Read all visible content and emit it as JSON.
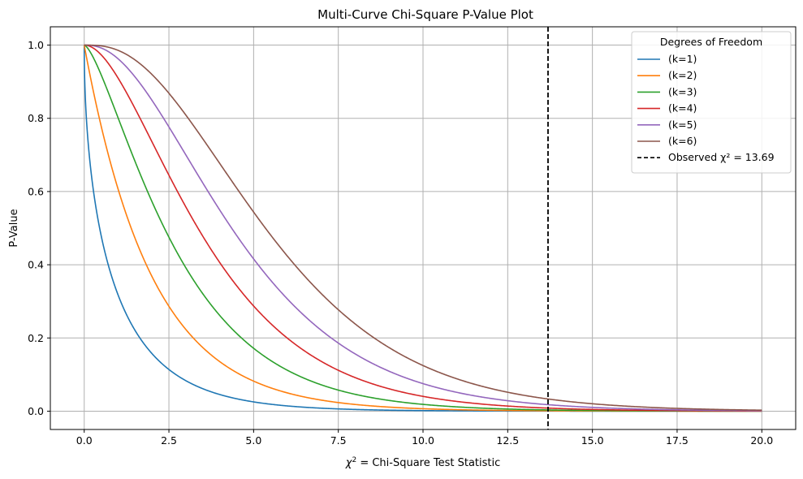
{
  "chart_data": {
    "type": "line",
    "title": "Multi-Curve Chi-Square P-Value Plot",
    "xlabel_math": "χ",
    "xlabel_sup": "2",
    "xlabel_rest": " = Chi-Square Test Statistic",
    "ylabel": "P-Value",
    "xlim": [
      -1.0,
      21.0
    ],
    "ylim": [
      -0.05,
      1.05
    ],
    "x_ticks": [
      0.0,
      2.5,
      5.0,
      7.5,
      10.0,
      12.5,
      15.0,
      17.5,
      20.0
    ],
    "x_tick_labels": [
      "0.0",
      "2.5",
      "5.0",
      "7.5",
      "10.0",
      "12.5",
      "15.0",
      "17.5",
      "20.0"
    ],
    "y_ticks": [
      0.0,
      0.2,
      0.4,
      0.6,
      0.8,
      1.0
    ],
    "y_tick_labels": [
      "0.0",
      "0.2",
      "0.4",
      "0.6",
      "0.8",
      "1.0"
    ],
    "grid": true,
    "x_range": [
      0,
      20
    ],
    "legend": {
      "title": "Degrees of Freedom",
      "placement": "top-right"
    },
    "series": [
      {
        "name": "(k=1)",
        "df": 1,
        "color": "#1f77b4"
      },
      {
        "name": "(k=2)",
        "df": 2,
        "color": "#ff7f0e"
      },
      {
        "name": "(k=3)",
        "df": 3,
        "color": "#2ca02c"
      },
      {
        "name": "(k=4)",
        "df": 4,
        "color": "#d62728"
      },
      {
        "name": "(k=5)",
        "df": 5,
        "color": "#9467bd"
      },
      {
        "name": "(k=6)",
        "df": 6,
        "color": "#8c564b"
      }
    ],
    "reference_line": {
      "name": "Observed χ² = 13.69",
      "x": 13.69,
      "color": "#000000",
      "style": "dashed"
    }
  }
}
